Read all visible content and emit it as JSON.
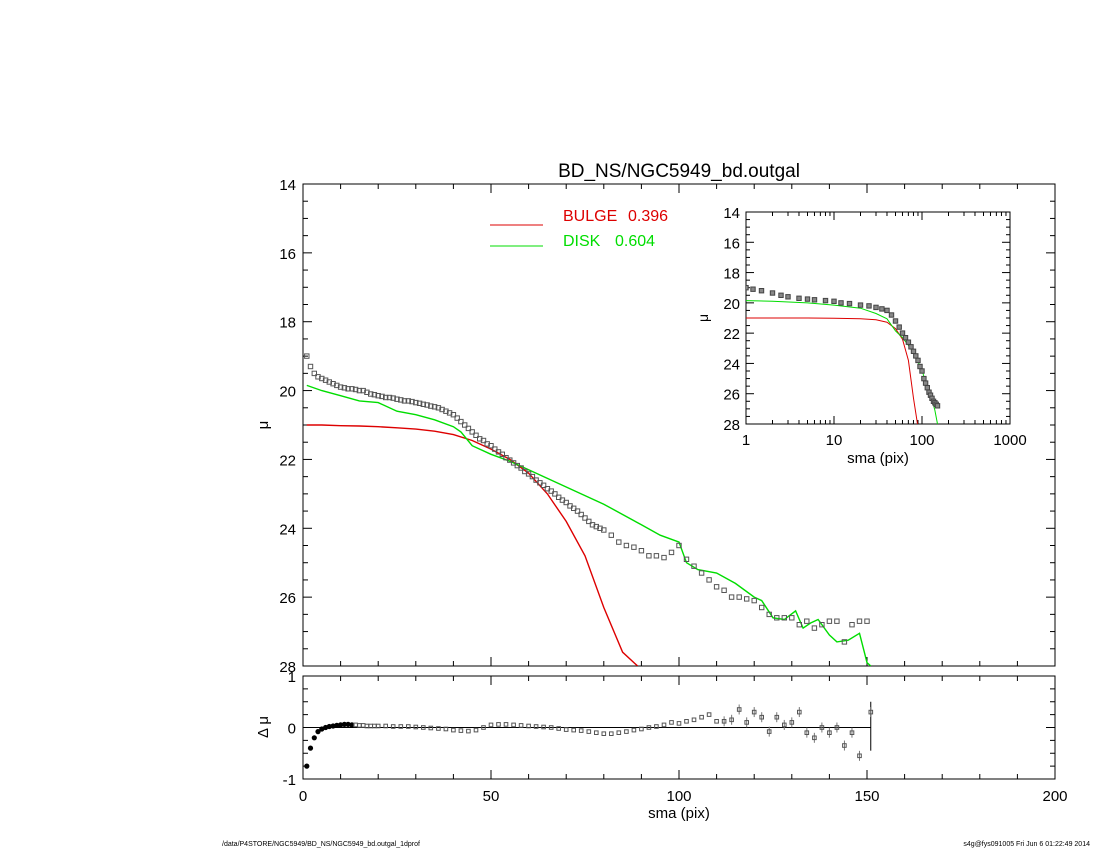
{
  "chart_data": [
    {
      "id": "main",
      "type": "scatter",
      "title": "BD_NS/NGC5949_bd.outgal",
      "xlabel": "",
      "ylabel": "μ",
      "xlim": [
        0,
        200
      ],
      "ylim": [
        28,
        14
      ],
      "x_ticks": [
        0,
        50,
        100,
        150,
        200
      ],
      "y_ticks": [
        14,
        16,
        18,
        20,
        22,
        24,
        26,
        28
      ],
      "legend": [
        {
          "name": "BULGE",
          "value": "0.396",
          "color": "#dd0000"
        },
        {
          "name": "DISK",
          "value": "0.604",
          "color": "#00dd00"
        }
      ],
      "legend_position": "top-center",
      "series": [
        {
          "name": "data",
          "style": "points",
          "color": "#444444",
          "x": [
            1,
            2,
            3,
            4,
            5,
            6,
            7,
            8,
            9,
            10,
            11,
            12,
            13,
            14,
            15,
            16,
            17,
            18,
            19,
            20,
            21,
            22,
            23,
            24,
            25,
            26,
            27,
            28,
            29,
            30,
            31,
            32,
            33,
            34,
            35,
            36,
            37,
            38,
            39,
            40,
            41,
            42,
            43,
            44,
            45,
            46,
            47,
            48,
            49,
            50,
            51,
            52,
            53,
            54,
            55,
            56,
            57,
            58,
            59,
            60,
            61,
            62,
            63,
            64,
            65,
            66,
            67,
            68,
            69,
            70,
            71,
            72,
            73,
            74,
            75,
            76,
            77,
            78,
            79,
            80,
            82,
            84,
            86,
            88,
            90,
            92,
            94,
            96,
            98,
            100,
            102,
            104,
            106,
            108,
            110,
            112,
            114,
            116,
            118,
            120,
            122,
            124,
            126,
            128,
            130,
            132,
            134,
            136,
            138,
            140,
            142,
            144,
            146,
            148,
            150
          ],
          "y": [
            19.0,
            19.3,
            19.5,
            19.6,
            19.65,
            19.7,
            19.75,
            19.8,
            19.85,
            19.9,
            19.92,
            19.95,
            19.95,
            19.97,
            20.0,
            20.0,
            20.05,
            20.1,
            20.12,
            20.15,
            20.17,
            20.2,
            20.2,
            20.22,
            20.25,
            20.27,
            20.3,
            20.3,
            20.32,
            20.35,
            20.37,
            20.4,
            20.42,
            20.45,
            20.47,
            20.5,
            20.55,
            20.6,
            20.65,
            20.7,
            20.8,
            20.9,
            21.0,
            21.1,
            21.2,
            21.3,
            21.4,
            21.45,
            21.55,
            21.6,
            21.7,
            21.78,
            21.85,
            21.95,
            22.02,
            22.1,
            22.18,
            22.25,
            22.35,
            22.42,
            22.5,
            22.6,
            22.68,
            22.75,
            22.85,
            22.92,
            23.0,
            23.1,
            23.18,
            23.25,
            23.35,
            23.42,
            23.5,
            23.6,
            23.7,
            23.8,
            23.9,
            23.95,
            24.0,
            24.05,
            24.2,
            24.4,
            24.5,
            24.55,
            24.65,
            24.8,
            24.8,
            24.85,
            24.7,
            24.5,
            24.9,
            25.1,
            25.3,
            25.5,
            25.7,
            25.8,
            26.0,
            26.0,
            26.05,
            26.1,
            26.3,
            26.5,
            26.6,
            26.6,
            26.6,
            26.8,
            26.7,
            26.9,
            26.8,
            26.7,
            26.7,
            27.3,
            26.8,
            26.7,
            26.7
          ]
        },
        {
          "name": "BULGE",
          "style": "line",
          "color": "#dd0000",
          "x": [
            1,
            5,
            10,
            15,
            20,
            25,
            30,
            35,
            40,
            45,
            50,
            55,
            60,
            65,
            70,
            75,
            80,
            85,
            89
          ],
          "y": [
            21.0,
            21.0,
            21.02,
            21.03,
            21.05,
            21.08,
            21.12,
            21.18,
            21.28,
            21.45,
            21.7,
            22.0,
            22.4,
            23.0,
            23.8,
            24.8,
            26.3,
            27.6,
            28.0
          ]
        },
        {
          "name": "DISK",
          "style": "line",
          "color": "#00dd00",
          "x": [
            1,
            5,
            10,
            15,
            20,
            25,
            30,
            35,
            40,
            42,
            45,
            50,
            55,
            60,
            65,
            70,
            75,
            80,
            85,
            90,
            95,
            100,
            102,
            105,
            110,
            115,
            120,
            122,
            125,
            128,
            131,
            133,
            135,
            137,
            140,
            142,
            145,
            148,
            150,
            151
          ],
          "y": [
            19.85,
            20.0,
            20.15,
            20.3,
            20.35,
            20.6,
            20.7,
            20.85,
            21.05,
            21.2,
            21.6,
            21.85,
            22.05,
            22.3,
            22.55,
            22.8,
            23.05,
            23.3,
            23.6,
            23.9,
            24.2,
            24.4,
            25.0,
            25.2,
            25.3,
            25.6,
            26.0,
            26.1,
            26.6,
            26.65,
            26.4,
            26.9,
            26.75,
            26.65,
            27.1,
            27.3,
            27.25,
            27.05,
            27.9,
            28.0
          ]
        }
      ]
    },
    {
      "id": "residual",
      "type": "scatter",
      "title": "",
      "xlabel": "sma (pix)",
      "ylabel": "Δ μ",
      "xlim": [
        0,
        200
      ],
      "ylim": [
        -1,
        1
      ],
      "x_ticks": [
        0,
        50,
        100,
        150,
        200
      ],
      "y_ticks": [
        -1,
        0,
        1
      ],
      "series": [
        {
          "name": "residual",
          "style": "points",
          "color": "#444444",
          "x": [
            1,
            2,
            3,
            4,
            5,
            6,
            7,
            8,
            9,
            10,
            11,
            12,
            13,
            14,
            15,
            16,
            17,
            18,
            19,
            20,
            22,
            24,
            26,
            28,
            30,
            32,
            34,
            36,
            38,
            40,
            42,
            44,
            46,
            48,
            50,
            52,
            54,
            56,
            58,
            60,
            62,
            64,
            66,
            68,
            70,
            72,
            74,
            76,
            78,
            80,
            82,
            84,
            86,
            88,
            90,
            92,
            94,
            96,
            98,
            100,
            102,
            104,
            106,
            108,
            110,
            112,
            114,
            116,
            118,
            120,
            122,
            124,
            126,
            128,
            130,
            132,
            134,
            136,
            138,
            140,
            142,
            144,
            146,
            148,
            151
          ],
          "y": [
            -0.75,
            -0.4,
            -0.2,
            -0.08,
            -0.03,
            0.0,
            0.02,
            0.03,
            0.04,
            0.05,
            0.06,
            0.06,
            0.05,
            0.05,
            0.04,
            0.04,
            0.03,
            0.03,
            0.03,
            0.03,
            0.03,
            0.02,
            0.02,
            0.02,
            0.01,
            0.0,
            -0.01,
            -0.02,
            -0.03,
            -0.05,
            -0.06,
            -0.07,
            -0.05,
            0.0,
            0.05,
            0.06,
            0.06,
            0.05,
            0.04,
            0.03,
            0.02,
            0.01,
            0.0,
            -0.02,
            -0.04,
            -0.05,
            -0.06,
            -0.08,
            -0.1,
            -0.12,
            -0.12,
            -0.1,
            -0.08,
            -0.05,
            -0.03,
            0.0,
            0.02,
            0.05,
            0.1,
            0.08,
            0.12,
            0.15,
            0.2,
            0.25,
            0.12,
            0.12,
            0.15,
            0.35,
            0.1,
            0.3,
            0.2,
            -0.08,
            0.2,
            0.05,
            0.1,
            0.3,
            -0.1,
            -0.2,
            0.0,
            -0.1,
            0.0,
            -0.35,
            -0.1,
            -0.55,
            0.3
          ]
        }
      ]
    },
    {
      "id": "inset",
      "type": "scatter",
      "title": "",
      "xlabel": "sma (pix)",
      "ylabel": "μ",
      "xscale": "log",
      "xlim": [
        1,
        1000
      ],
      "ylim": [
        28,
        14
      ],
      "x_ticks": [
        1,
        10,
        100,
        1000
      ],
      "y_ticks": [
        14,
        16,
        18,
        20,
        22,
        24,
        26,
        28
      ],
      "series": [
        {
          "name": "data",
          "style": "points",
          "color": "#444444",
          "x": [
            1,
            1.2,
            1.5,
            2,
            2.5,
            3,
            4,
            5,
            6,
            8,
            10,
            12,
            15,
            20,
            25,
            30,
            35,
            40,
            45,
            50,
            55,
            60,
            65,
            70,
            75,
            80,
            85,
            90,
            95,
            100,
            105,
            110,
            115,
            120,
            125,
            130,
            135,
            140,
            145,
            150
          ],
          "y": [
            19.0,
            19.1,
            19.2,
            19.35,
            19.5,
            19.6,
            19.7,
            19.75,
            19.8,
            19.85,
            19.9,
            20.0,
            20.05,
            20.15,
            20.2,
            20.3,
            20.4,
            20.5,
            20.8,
            21.2,
            21.6,
            22.0,
            22.3,
            22.6,
            22.9,
            23.2,
            23.5,
            23.8,
            24.2,
            24.5,
            25.0,
            25.3,
            25.6,
            25.9,
            26.1,
            26.3,
            26.5,
            26.6,
            26.7,
            26.8
          ]
        },
        {
          "name": "BULGE",
          "style": "line",
          "color": "#dd0000",
          "x": [
            1,
            2,
            5,
            10,
            20,
            30,
            40,
            50,
            60,
            70,
            80,
            89
          ],
          "y": [
            21.0,
            21.0,
            21.0,
            21.02,
            21.05,
            21.12,
            21.28,
            21.7,
            22.4,
            23.8,
            26.3,
            28.0
          ]
        },
        {
          "name": "DISK",
          "style": "line",
          "color": "#00dd00",
          "x": [
            1,
            2,
            5,
            10,
            20,
            30,
            40,
            50,
            60,
            70,
            80,
            90,
            100,
            110,
            120,
            130,
            140,
            150
          ],
          "y": [
            19.85,
            19.9,
            20.0,
            20.15,
            20.35,
            20.7,
            21.05,
            21.85,
            22.3,
            22.8,
            23.3,
            23.9,
            24.4,
            25.3,
            26.0,
            26.4,
            27.1,
            28.0
          ]
        }
      ]
    }
  ],
  "footer": {
    "left": "/data/P4STORE/NGC5949/BD_NS/NGC5949_bd.outgal_1dprof",
    "right": "s4g@fys091005  Fri Jun  6 01:22:49 2014"
  }
}
